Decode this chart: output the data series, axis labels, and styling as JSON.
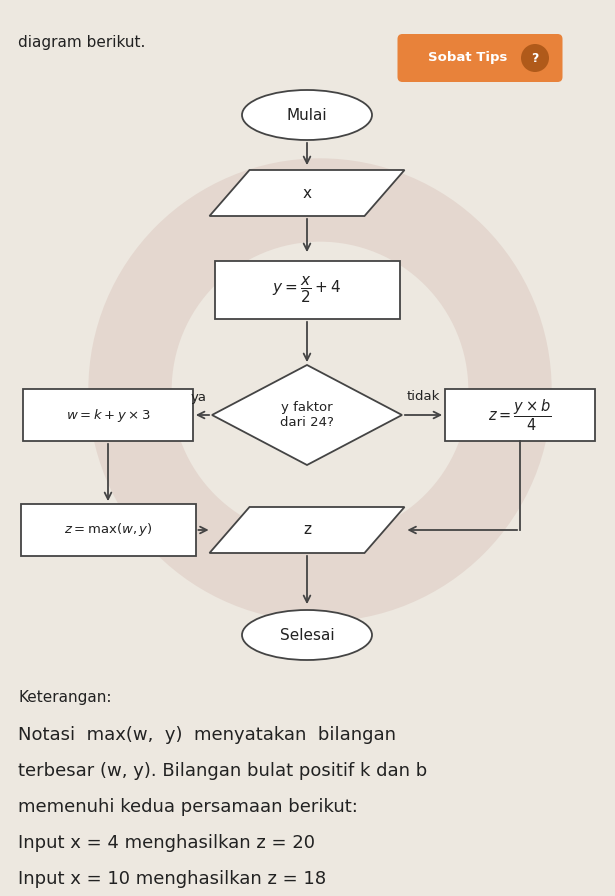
{
  "bg_color": "#ede8e0",
  "title_text": "diagram berikut.",
  "sobat_tips_bg": "#e8823a",
  "mulai_text": "Mulai",
  "input_text": "x",
  "decision_text": "y faktor\ndari 24?",
  "yes_label": "ya",
  "no_label": "tidak",
  "process2_text": "w = k + y × 3",
  "process4_text": "z = max(w, y)",
  "output_text": "z",
  "selesai_text": "Selesai",
  "keterangan_lines": [
    "Keterangan:",
    "Notasi  max(w,  y)  menyatakan  bilangan",
    "terbesar (w, y). Bilangan bulat positif k dan b",
    "memenuhi kedua persamaan berikut:",
    "Input x = 4 menghasilkan z = 20",
    "Input x = 10 menghasilkan z = 18"
  ],
  "line_color": "#444444",
  "box_fill": "#ffffff",
  "box_edge": "#444444",
  "text_color": "#222222",
  "watermark_color": "#d4b8b0"
}
